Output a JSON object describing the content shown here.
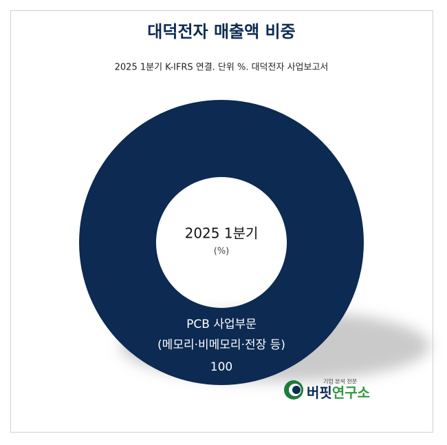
{
  "chart_data": {
    "type": "pie",
    "donut": true,
    "title": "대덕전자 매출액 비중",
    "subtitle": "2025 1분기 K-IFRS 연결. 단위 %. 대덕전자 사업보고서",
    "center_label": "2025 1분기",
    "center_sublabel": "(%)",
    "categories": [
      "PCB 사업부문"
    ],
    "category_details": [
      "(메모리·비메모리·전장 등)"
    ],
    "values": [
      100
    ],
    "colors": [
      "#0c2a52"
    ]
  },
  "logo": {
    "tagline": "기업 분석 전문",
    "name_first": "버핏",
    "name_second": "연구소"
  }
}
